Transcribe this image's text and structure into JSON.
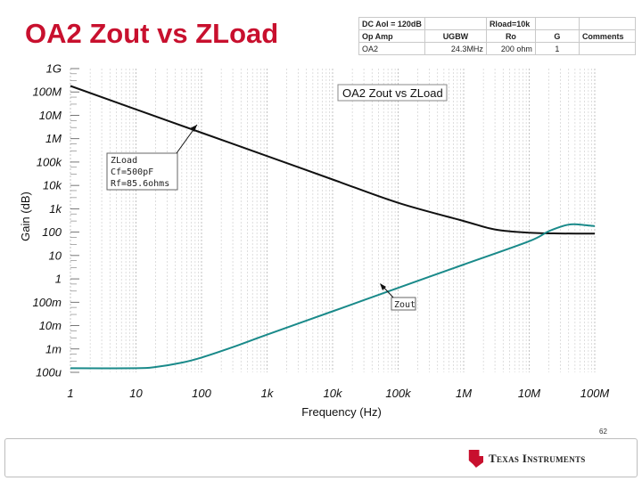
{
  "slide": {
    "title": "OA2 Zout vs ZLoad",
    "page_number": "62"
  },
  "params_table": {
    "header": [
      "DC Aol = 120dB",
      "",
      "Rload=10k",
      "",
      ""
    ],
    "columns": [
      "Op Amp",
      "UGBW",
      "Ro",
      "G",
      "Comments"
    ],
    "row": [
      "OA2",
      "24.3MHz",
      "200 ohm",
      "1",
      ""
    ]
  },
  "annotations": {
    "zload_label_lines": [
      "ZLoad",
      "Cf=500pF",
      "Rf=85.6ohms"
    ],
    "zout_label": "Zout"
  },
  "chart_data": {
    "type": "line",
    "title": "OA2 Zout vs ZLoad",
    "xlabel": "Frequency (Hz)",
    "ylabel": "Gain (dB)",
    "x_scale": "log",
    "y_scale": "log",
    "xlim": [
      1,
      100000000
    ],
    "ylim": [
      0.0001,
      1000000000
    ],
    "x_ticks": [
      1,
      10,
      100,
      1000,
      10000,
      100000,
      1000000,
      10000000,
      100000000
    ],
    "x_tick_labels": [
      "1",
      "10",
      "100",
      "1k",
      "10k",
      "100k",
      "1M",
      "10M",
      "100M"
    ],
    "y_ticks": [
      0.0001,
      0.001,
      0.01,
      0.1,
      1,
      10,
      100,
      1000,
      10000,
      100000,
      1000000,
      10000000,
      100000000,
      1000000000
    ],
    "y_tick_labels": [
      "100u",
      "1m",
      "10m",
      "100m",
      "1",
      "10",
      "100",
      "1k",
      "10k",
      "100k",
      "1M",
      "10M",
      "100M",
      "1G"
    ],
    "grid": true,
    "series": [
      {
        "name": "ZLoad",
        "color": "#111111",
        "points": [
          [
            1,
            180000000
          ],
          [
            10,
            18000000
          ],
          [
            100,
            1800000
          ],
          [
            1000,
            180000
          ],
          [
            10000,
            18000
          ],
          [
            100000,
            1800
          ],
          [
            1000000,
            300
          ],
          [
            3000000,
            130
          ],
          [
            10000000,
            95
          ],
          [
            30000000,
            88
          ],
          [
            100000000,
            86
          ]
        ]
      },
      {
        "name": "Zout",
        "color": "#1a8a8a",
        "points": [
          [
            1,
            0.00015
          ],
          [
            10,
            0.00015
          ],
          [
            20,
            0.00017
          ],
          [
            50,
            0.00026
          ],
          [
            100,
            0.00043
          ],
          [
            300,
            0.0012
          ],
          [
            1000,
            0.0041
          ],
          [
            10000,
            0.041
          ],
          [
            100000,
            0.41
          ],
          [
            1000000,
            4.1
          ],
          [
            10000000,
            41
          ],
          [
            20000000,
            110
          ],
          [
            40000000,
            210
          ],
          [
            70000000,
            200
          ],
          [
            100000000,
            180
          ]
        ]
      }
    ]
  }
}
